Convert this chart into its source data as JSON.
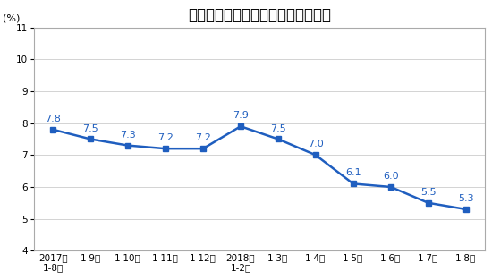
{
  "title": "固定资产投资（不含农户）同比增速",
  "ylabel": "(%)",
  "categories": [
    "2017年\n1-8月",
    "1-9月",
    "1-10月",
    "1-11月",
    "1-12月",
    "2018年\n1-2月",
    "1-3月",
    "1-4月",
    "1-5月",
    "1-6月",
    "1-7月",
    "1-8月"
  ],
  "values": [
    7.8,
    7.5,
    7.3,
    7.2,
    7.2,
    7.9,
    7.5,
    7.0,
    6.1,
    6.0,
    5.5,
    5.3
  ],
  "ylim": [
    4,
    11
  ],
  "yticks": [
    4,
    5,
    6,
    7,
    8,
    9,
    10,
    11
  ],
  "line_color": "#1F5EBF",
  "marker_color": "#1F5EBF",
  "marker": "s",
  "marker_size": 5,
  "line_width": 1.8,
  "label_fontsize": 8.0,
  "title_fontsize": 12,
  "ylabel_fontsize": 8,
  "tick_fontsize": 7.5,
  "background_color": "#ffffff",
  "plot_bg_color": "#ffffff",
  "grid_color": "#cccccc",
  "border_color": "#aaaaaa"
}
